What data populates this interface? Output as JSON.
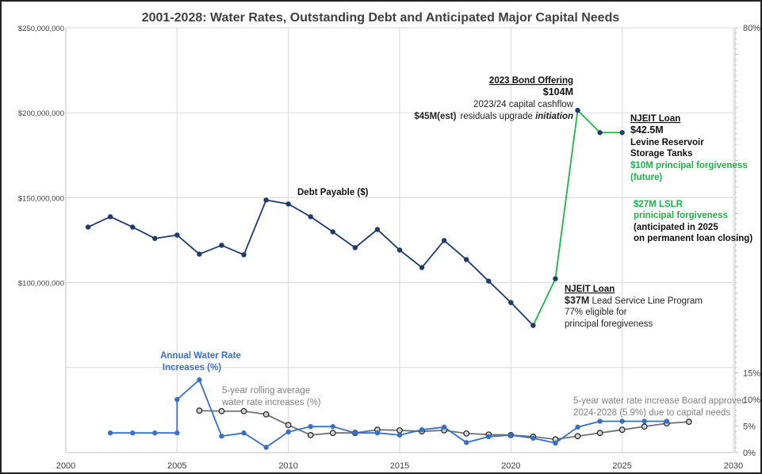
{
  "chart_data": {
    "type": "line",
    "title": "2001-2028: Water Rates, Outstanding Debt and Anticipated Major Capital Needs",
    "x_axis": {
      "range": [
        2000,
        2030
      ],
      "ticks": [
        "2000",
        "2005",
        "2010",
        "2015",
        "2020",
        "2025",
        "2030"
      ]
    },
    "y_left": {
      "range": [
        0,
        250000000
      ],
      "ticks": [
        "$100,000,000",
        "$150,000,000",
        "$200,000,000",
        "$250,000,000"
      ],
      "tick_values": [
        100000000,
        150000000,
        200000000,
        250000000
      ]
    },
    "y_right": {
      "range": [
        0,
        80
      ],
      "ticks": [
        "0%",
        "5%",
        "10%",
        "15%",
        "80%"
      ],
      "tick_values": [
        0,
        5,
        10,
        15,
        80
      ]
    },
    "grid": true,
    "series": [
      {
        "name": "Debt Payable ($)",
        "axis": "left",
        "color": "#1f3a6e",
        "future_color": "#1db34a",
        "x": [
          2001,
          2002,
          2003,
          2004,
          2005,
          2006,
          2007,
          2008,
          2009,
          2010,
          2011,
          2012,
          2013,
          2014,
          2015,
          2016,
          2017,
          2018,
          2019,
          2020,
          2021,
          2022,
          2023,
          2024,
          2025
        ],
        "values": [
          132700000,
          138800000,
          132700000,
          126000000,
          128000000,
          116800000,
          122000000,
          116400000,
          148600000,
          146300000,
          138800000,
          129900000,
          120600000,
          131300000,
          119200000,
          108900000,
          124800000,
          113600000,
          100900000,
          88300000,
          74800000,
          102300000,
          201400000,
          188300000,
          188300000
        ]
      },
      {
        "name": "Annual Water Rate Increases (%)",
        "axis": "right",
        "color": "#3a6fc9",
        "x": [
          2002,
          2003,
          2004,
          2005,
          2005,
          2006,
          2007,
          2008,
          2009,
          2010,
          2011,
          2012,
          2013,
          2014,
          2015,
          2016,
          2017,
          2018,
          2019,
          2020,
          2021,
          2022,
          2023,
          2024,
          2025,
          2026,
          2027
        ],
        "values": [
          3.7,
          3.7,
          3.7,
          3.7,
          10.0,
          13.7,
          3.1,
          3.7,
          1.0,
          3.9,
          4.9,
          4.9,
          3.7,
          3.7,
          3.3,
          4.3,
          4.8,
          1.9,
          3.0,
          3.3,
          2.7,
          1.8,
          4.8,
          5.9,
          5.9,
          5.9,
          5.9
        ]
      },
      {
        "name": "5-year rolling average water rate increases (%)",
        "axis": "right",
        "color": "#707070",
        "x": [
          2006,
          2007,
          2008,
          2009,
          2010,
          2011,
          2012,
          2013,
          2014,
          2015,
          2016,
          2017,
          2018,
          2019,
          2020,
          2021,
          2022,
          2023,
          2024,
          2025,
          2026,
          2027,
          2028
        ],
        "values": [
          7.9,
          7.8,
          7.8,
          7.2,
          5.2,
          3.3,
          3.7,
          3.7,
          4.3,
          4.2,
          4.0,
          4.2,
          3.6,
          3.4,
          3.3,
          3.0,
          2.5,
          3.1,
          3.7,
          4.3,
          4.9,
          5.5,
          5.8
        ]
      }
    ],
    "annotations": {
      "debt_label": "Debt Payable ($)",
      "rate_label_1": "Annual Water Rate",
      "rate_label_2": "Increases (%)",
      "rolling_label_1": "5-year rolling average",
      "rolling_label_2": "water rate increases (%)",
      "bond_title": "2023 Bond Offering",
      "bond_amount": "$104M",
      "bond_line3": "2023/24 capital cashflow",
      "bond_line4_bold": "$45M(est)",
      "bond_line4_a": "residuals upgrade ",
      "bond_line4_b": "initiation",
      "njeit2_title": "NJEIT Loan",
      "njeit2_amount": "$42.5M",
      "njeit2_line3": "Levine Reservoir",
      "njeit2_line4": "Storage Tanks",
      "njeit2_green1": "$10M principal forgiveness",
      "njeit2_green2": "(future)",
      "lslr_1": "$27M LSLR",
      "lslr_2": "prinicipal forgiveness",
      "lslr_3": "(anticipated in 2025",
      "lslr_4": "on permanent loan closing)",
      "njeit1_title": "NJEIT Loan",
      "njeit1_amount": "$37M",
      "njeit1_rest": " Lead Service Line Program",
      "njeit1_line3": "77% eligible for",
      "njeit1_line4": "principal foregiveness",
      "board_1": "5-year water rate increase Board approved",
      "board_2": "2024-2028 (5.9%) due to capital needs"
    }
  }
}
